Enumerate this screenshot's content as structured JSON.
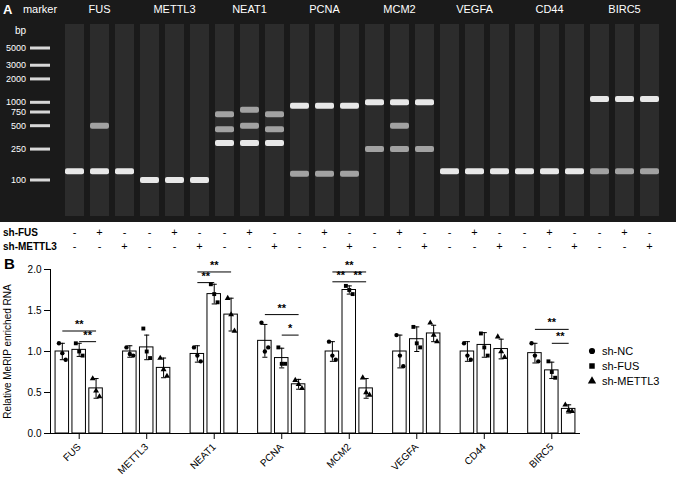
{
  "gel": {
    "panel_label": "A",
    "marker_label": "marker",
    "bp_label": "bp",
    "ladder_bp": [
      5000,
      3000,
      2000,
      1000,
      750,
      500,
      250,
      100
    ],
    "genes": [
      "FUS",
      "METTL3",
      "NEAT1",
      "PCNA",
      "MCM2",
      "VEGFA",
      "CD44",
      "BIRC5"
    ],
    "bands_bp": [
      [
        [
          130
        ],
        [
          130,
          500
        ],
        [
          130
        ]
      ],
      [
        [
          100
        ],
        [
          100
        ],
        [
          100
        ]
      ],
      [
        [
          300,
          450,
          700
        ],
        [
          300,
          500,
          800
        ],
        [
          300,
          450,
          700
        ]
      ],
      [
        [
          900,
          120
        ],
        [
          900,
          120
        ],
        [
          900,
          120
        ]
      ],
      [
        [
          1000,
          250
        ],
        [
          1000,
          500,
          250
        ],
        [
          1000,
          250
        ]
      ],
      [
        [
          130
        ],
        [
          130
        ],
        [
          130
        ]
      ],
      [
        [
          130
        ],
        [
          130
        ],
        [
          130
        ]
      ],
      [
        [
          1100,
          130
        ],
        [
          1100,
          130
        ],
        [
          1100,
          130
        ]
      ]
    ],
    "row_labels": [
      "sh-FUS",
      "sh-METTL3"
    ],
    "lane_signs": [
      [
        "-",
        "+",
        "-"
      ],
      [
        "-",
        "-",
        "+"
      ]
    ]
  },
  "chart_data": {
    "type": "bar",
    "panel_label": "B",
    "y_label": "Relative MeRIP enriched RNA",
    "categories": [
      "FUS",
      "METTL3",
      "NEAT1",
      "PCNA",
      "MCM2",
      "VEGFA",
      "CD44",
      "BIRC5"
    ],
    "series": [
      {
        "name": "sh-NC",
        "marker": "circle",
        "color": "#ffffff",
        "values": [
          1.0,
          1.0,
          0.97,
          1.13,
          1.0,
          1.0,
          1.0,
          0.98
        ],
        "errors": [
          0.1,
          0.07,
          0.1,
          0.2,
          0.12,
          0.2,
          0.12,
          0.12
        ],
        "points": [
          [
            1.1,
            0.98,
            0.9
          ],
          [
            1.05,
            0.97,
            0.95
          ],
          [
            1.05,
            0.95,
            0.88
          ],
          [
            1.35,
            1.0,
            1.05
          ],
          [
            1.12,
            0.95,
            0.9
          ],
          [
            1.2,
            0.95,
            0.82
          ],
          [
            1.1,
            0.95,
            0.9
          ],
          [
            1.1,
            0.95,
            0.88
          ]
        ]
      },
      {
        "name": "sh-FUS",
        "marker": "square",
        "color": "#ffffff",
        "values": [
          1.02,
          1.05,
          1.7,
          0.92,
          1.75,
          1.15,
          1.08,
          0.77
        ],
        "errors": [
          0.08,
          0.15,
          0.12,
          0.12,
          0.05,
          0.15,
          0.15,
          0.1
        ],
        "points": [
          [
            1.1,
            1.0,
            0.95
          ],
          [
            1.28,
            1.0,
            0.92
          ],
          [
            1.82,
            1.7,
            1.6
          ],
          [
            1.05,
            0.85,
            0.85
          ],
          [
            1.8,
            1.75,
            1.7
          ],
          [
            1.3,
            1.1,
            1.05
          ],
          [
            1.22,
            1.05,
            0.95
          ],
          [
            0.88,
            0.75,
            0.68
          ]
        ]
      },
      {
        "name": "sh-METTL3",
        "marker": "triangle",
        "color": "#ffffff",
        "values": [
          0.55,
          0.8,
          1.45,
          0.6,
          0.55,
          1.22,
          1.03,
          0.3
        ],
        "errors": [
          0.12,
          0.12,
          0.2,
          0.06,
          0.12,
          0.1,
          0.12,
          0.05
        ],
        "points": [
          [
            0.67,
            0.52,
            0.45
          ],
          [
            0.92,
            0.78,
            0.7
          ],
          [
            1.65,
            1.45,
            1.25
          ],
          [
            0.65,
            0.6,
            0.55
          ],
          [
            0.68,
            0.5,
            0.47
          ],
          [
            1.35,
            1.2,
            1.12
          ],
          [
            1.18,
            1.0,
            0.93
          ],
          [
            0.35,
            0.28,
            0.27
          ]
        ]
      }
    ],
    "ylim": [
      0,
      2
    ],
    "yticks": [
      {
        "value": 0,
        "label": "0.0"
      },
      {
        "value": 0.5,
        "label": "0.5"
      },
      {
        "value": 1,
        "label": "1.0"
      },
      {
        "value": 1.5,
        "label": "1.5"
      },
      {
        "value": 2,
        "label": "2.0"
      }
    ],
    "legend": "right",
    "annotations": [
      {
        "category": "FUS",
        "from": "sh-NC",
        "to": "sh-METTL3",
        "label": "**",
        "y": 1.25
      },
      {
        "category": "FUS",
        "from": "sh-FUS",
        "to": "sh-METTL3",
        "label": "**",
        "y": 1.12
      },
      {
        "category": "NEAT1",
        "from": "sh-NC",
        "to": "sh-METTL3",
        "label": "**",
        "y": 1.97
      },
      {
        "category": "NEAT1",
        "from": "sh-NC",
        "to": "sh-FUS",
        "label": "**",
        "y": 1.84
      },
      {
        "category": "PCNA",
        "from": "sh-NC",
        "to": "sh-METTL3",
        "label": "**",
        "y": 1.45
      },
      {
        "category": "PCNA",
        "from": "sh-FUS",
        "to": "sh-METTL3",
        "label": "*",
        "y": 1.2
      },
      {
        "category": "MCM2",
        "from": "sh-NC",
        "to": "sh-METTL3",
        "label": "**",
        "y": 1.97
      },
      {
        "category": "MCM2",
        "from": "sh-NC",
        "to": "sh-FUS",
        "label": "**",
        "y": 1.85
      },
      {
        "category": "MCM2",
        "from": "sh-FUS",
        "to": "sh-METTL3",
        "label": "**",
        "y": 1.85
      },
      {
        "category": "BIRC5",
        "from": "sh-NC",
        "to": "sh-METTL3",
        "label": "**",
        "y": 1.27
      },
      {
        "category": "BIRC5",
        "from": "sh-FUS",
        "to": "sh-METTL3",
        "label": "**",
        "y": 1.1
      }
    ]
  }
}
